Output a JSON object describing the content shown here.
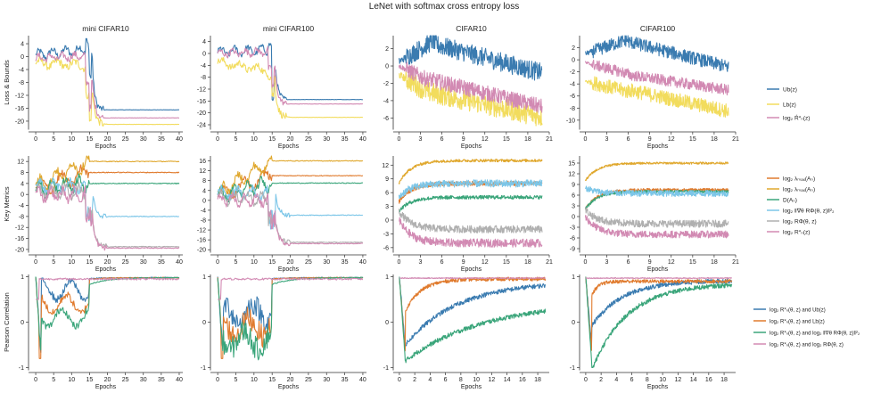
{
  "chart_data": {
    "type": "line",
    "title": "LeNet with softmax cross entropy loss",
    "columns": [
      "mini CIFAR10",
      "mini CIFAR100",
      "CIFAR10",
      "CIFAR100"
    ],
    "rows": [
      {
        "ylabel": "Loss & Bounds",
        "legend": [
          "Ub(z)",
          "Lb(z)",
          "log₂ Ŕ*ₙ(z)"
        ],
        "legend_colors": [
          "#3a7bb0",
          "#f2dc5d",
          "#d28ab3"
        ]
      },
      {
        "ylabel": "Key Metrics",
        "legend": [
          "log₂ λₘₐₓ(Aₙ)",
          "log₂ λₘₐₓ(Aₙ)",
          "D(Aₙ)",
          "log₂ ‖∇θ RΦ(θ, z)‖²₂",
          "log₂ RΦ(θ, z)",
          "log₂ R*ₙ(z)"
        ],
        "legend_colors": [
          "#e07b2e",
          "#e0a82e",
          "#3aa57a",
          "#7cc6e8",
          "#b0b0b0",
          "#d28ab3"
        ]
      },
      {
        "ylabel": "Pearson Correlation",
        "legend": [
          "log₂ R*ₙ(θ, z) and Ub(z)",
          "log₂ R*ₙ(θ, z) and Lb(z)",
          "log₂ R*ₙ(θ, z) and log₂ ‖∇θ RΦ(θ, z)‖²₂",
          "log₂ R*ₙ(θ, z) and log₂ RΦ(θ, z)"
        ],
        "legend_colors": [
          "#3a7bb0",
          "#e07b2e",
          "#3aa57a",
          "#d28ab3"
        ]
      }
    ],
    "xlabel": "Epochs",
    "x_ticks": {
      "mini": [
        0,
        5,
        10,
        15,
        20,
        25,
        30,
        35,
        40
      ],
      "cifar10_top": [
        0,
        3,
        6,
        9,
        12,
        15,
        18,
        21
      ],
      "cifar10_bottom": [
        0,
        2,
        4,
        6,
        8,
        10,
        12,
        14,
        16,
        18
      ],
      "cifar100_top": [
        0,
        3,
        6,
        9,
        12,
        15,
        18,
        21
      ],
      "cifar100_bottom": [
        0,
        2,
        4,
        6,
        8,
        10,
        12,
        14,
        16,
        18
      ]
    },
    "y_ticks": {
      "r0": [
        [
          4,
          0,
          -4,
          -8,
          -12,
          -16,
          -20
        ],
        [
          4,
          0,
          -4,
          -8,
          -12,
          -16,
          -20,
          -24
        ],
        [
          2,
          0,
          -2,
          -4,
          -6
        ],
        [
          2,
          0,
          -2,
          -4,
          -6,
          -8,
          -10
        ]
      ],
      "r1": [
        [
          12,
          8,
          4,
          0,
          -4,
          -8,
          -12,
          -16,
          -20
        ],
        [
          16,
          12,
          8,
          4,
          0,
          -4,
          -8,
          -12,
          -16,
          -20
        ],
        [
          12,
          9,
          6,
          3,
          0,
          -3,
          -6
        ],
        [
          15,
          12,
          9,
          6,
          3,
          0,
          -3,
          -6,
          -9
        ]
      ],
      "r2": [
        [
          1,
          0,
          -1
        ],
        [
          1,
          0,
          -1
        ],
        [
          1,
          0,
          -1
        ],
        [
          1,
          0,
          -1
        ]
      ]
    },
    "series_summary": {
      "r0_c0": {
        "Ub": {
          "start": 0,
          "peak": 6,
          "end": -16.5
        },
        "Lb": {
          "start": -2,
          "end": -21
        },
        "logR": {
          "start": -0.5,
          "end": -19
        }
      },
      "r0_c1": {
        "Ub": {
          "start": 0.5,
          "end": -15.5
        },
        "Lb": {
          "start": -3,
          "end": -21.5
        },
        "logR": {
          "start": 0,
          "end": -17
        }
      },
      "r0_c2": {
        "Ub": {
          "start": 0.5,
          "end": -1
        },
        "Lb": {
          "start": -1,
          "end": -5.8
        },
        "logR": {
          "start": 0,
          "end": -5
        }
      },
      "r0_c3": {
        "Ub": {
          "start": 1,
          "end": -1.3
        },
        "Lb": {
          "start": -3.5,
          "end": -8.7
        },
        "logR": {
          "start": -0.5,
          "end": -5
        }
      }
    }
  }
}
